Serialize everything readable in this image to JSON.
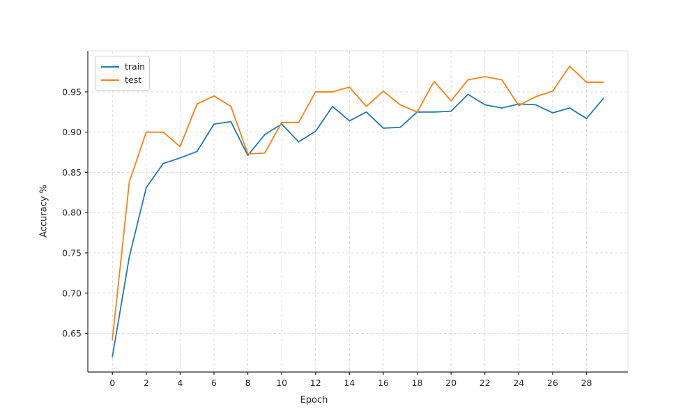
{
  "chart_data": {
    "type": "line",
    "title": "",
    "xlabel": "Epoch",
    "ylabel": "Accuracy %",
    "x": [
      0,
      1,
      2,
      3,
      4,
      5,
      6,
      7,
      8,
      9,
      10,
      11,
      12,
      13,
      14,
      15,
      16,
      17,
      18,
      19,
      20,
      21,
      22,
      23,
      24,
      25,
      26,
      27,
      28,
      29
    ],
    "series": [
      {
        "name": "train",
        "color": "#1f77b4",
        "values": [
          0.621,
          0.745,
          0.831,
          0.861,
          0.868,
          0.876,
          0.91,
          0.913,
          0.871,
          0.897,
          0.91,
          0.888,
          0.901,
          0.932,
          0.914,
          0.925,
          0.905,
          0.906,
          0.925,
          0.925,
          0.926,
          0.947,
          0.934,
          0.93,
          0.935,
          0.934,
          0.924,
          0.93,
          0.917,
          0.942
        ]
      },
      {
        "name": "test",
        "color": "#ff7f0e",
        "values": [
          0.642,
          0.838,
          0.9,
          0.9,
          0.882,
          0.935,
          0.945,
          0.932,
          0.873,
          0.874,
          0.912,
          0.912,
          0.95,
          0.95,
          0.956,
          0.932,
          0.951,
          0.934,
          0.925,
          0.963,
          0.939,
          0.965,
          0.969,
          0.965,
          0.933,
          0.944,
          0.951,
          0.982,
          0.962,
          0.962
        ]
      }
    ],
    "xlim": [
      -1.45,
      30.45
    ],
    "ylim": [
      0.602,
      1.001
    ],
    "xticks": [
      0,
      2,
      4,
      6,
      8,
      10,
      12,
      14,
      16,
      18,
      20,
      22,
      24,
      26,
      28
    ],
    "yticks": [
      0.65,
      0.7,
      0.75,
      0.8,
      0.85,
      0.9,
      0.95
    ],
    "grid": true,
    "grid_style": "dashed",
    "legend_position": "upper left",
    "colors": {
      "background": "#ffffff",
      "grid": "#d8d8d8",
      "spine": "#262626",
      "spine_light": "#e2e2e2",
      "text": "#262626"
    }
  }
}
